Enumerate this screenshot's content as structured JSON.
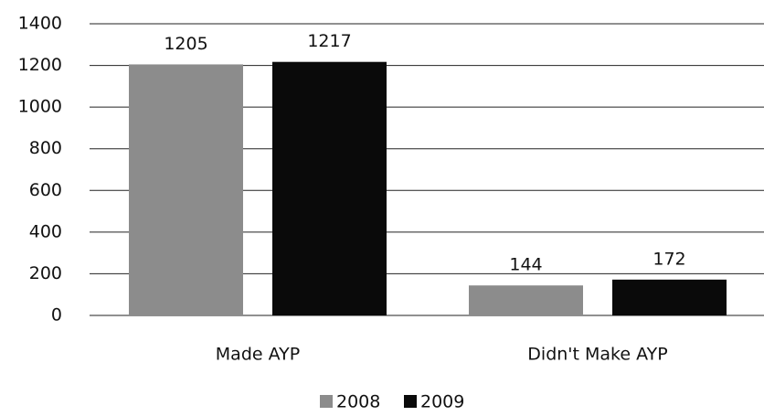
{
  "chart_data": {
    "type": "bar",
    "categories": [
      "Made AYP",
      "Didn't Make AYP"
    ],
    "series": [
      {
        "name": "2008",
        "color": "#8c8c8c",
        "values": [
          1205,
          144
        ]
      },
      {
        "name": "2009",
        "color": "#0a0a0a",
        "values": [
          1217,
          172
        ]
      }
    ],
    "ylim": [
      0,
      1400
    ],
    "yticks": [
      0,
      200,
      400,
      600,
      800,
      1000,
      1200,
      1400
    ],
    "grid": true,
    "legend": "bottom",
    "data_labels": true
  }
}
